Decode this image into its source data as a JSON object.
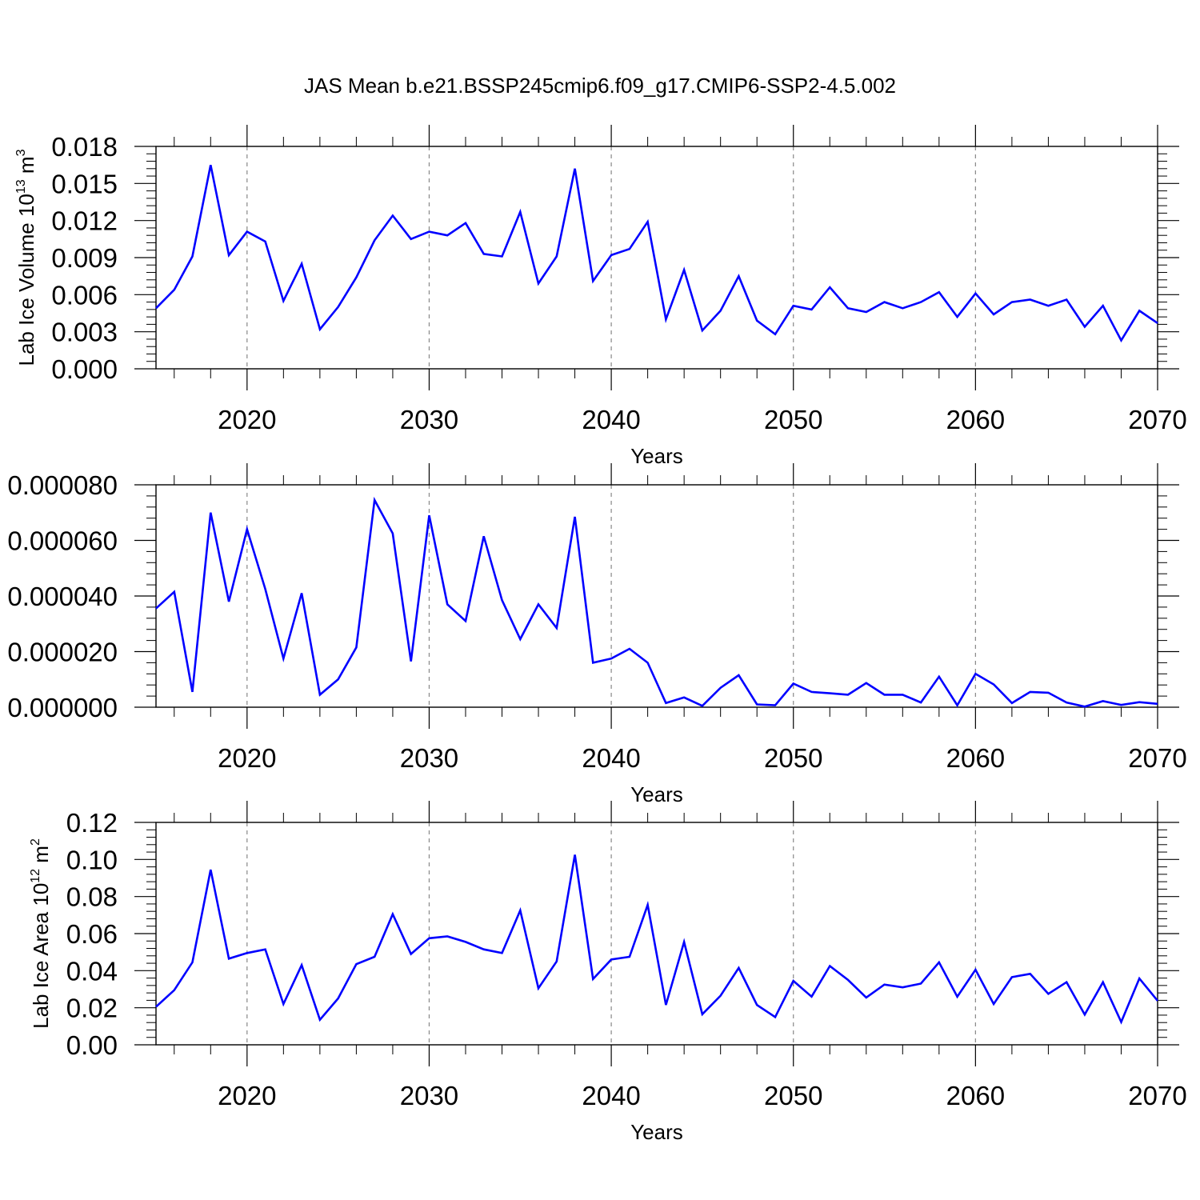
{
  "title": "JAS Mean b.e21.BSSP245cmip6.f09_g17.CMIP6-SSP2-4.5.002",
  "line_color": "#0000ff",
  "grid_color": "#888888",
  "chart_data": [
    {
      "type": "line",
      "xlabel": "Years",
      "ylabel": "Lab Ice Volume 10",
      "ylabel_sup": "13",
      "ylabel_unit": " m",
      "ylabel_unit_sup": "3",
      "xlim": [
        2015,
        2070
      ],
      "ylim": [
        0,
        0.018
      ],
      "x_ticks": [
        2020,
        2030,
        2040,
        2050,
        2060,
        2070
      ],
      "y_ticks": [
        0,
        0.003,
        0.006,
        0.009,
        0.012,
        0.015,
        0.018
      ],
      "y_tick_labels": [
        "0.000",
        "0.003",
        "0.006",
        "0.009",
        "0.012",
        "0.015",
        "0.018"
      ],
      "vertical_grid": "dashed at major x ticks",
      "x": [
        2015,
        2016,
        2017,
        2018,
        2019,
        2020,
        2021,
        2022,
        2023,
        2024,
        2025,
        2026,
        2027,
        2028,
        2029,
        2030,
        2031,
        2032,
        2033,
        2034,
        2035,
        2036,
        2037,
        2038,
        2039,
        2040,
        2041,
        2042,
        2043,
        2044,
        2045,
        2046,
        2047,
        2048,
        2049,
        2050,
        2051,
        2052,
        2053,
        2054,
        2055,
        2056,
        2057,
        2058,
        2059,
        2060,
        2061,
        2062,
        2063,
        2064,
        2065,
        2066,
        2067,
        2068,
        2069,
        2070
      ],
      "y": [
        0.0049,
        0.0064,
        0.0091,
        0.0165,
        0.0092,
        0.0111,
        0.0103,
        0.0055,
        0.0085,
        0.0032,
        0.005,
        0.0074,
        0.0104,
        0.0124,
        0.0105,
        0.0111,
        0.0108,
        0.0118,
        0.0093,
        0.0091,
        0.0127,
        0.0069,
        0.0091,
        0.0162,
        0.0071,
        0.0092,
        0.0097,
        0.0119,
        0.004,
        0.008,
        0.0031,
        0.0047,
        0.0075,
        0.0039,
        0.0028,
        0.0051,
        0.0048,
        0.0066,
        0.0049,
        0.0046,
        0.0054,
        0.0049,
        0.0054,
        0.0062,
        0.0042,
        0.0061,
        0.0044,
        0.0054,
        0.0056,
        0.0051,
        0.0056,
        0.0034,
        0.0051,
        0.0023,
        0.0047,
        0.0037
      ]
    },
    {
      "type": "line",
      "xlabel": "Years",
      "ylabel": "",
      "xlim": [
        2015,
        2070
      ],
      "ylim": [
        0,
        8e-05
      ],
      "x_ticks": [
        2020,
        2030,
        2040,
        2050,
        2060,
        2070
      ],
      "y_ticks": [
        0,
        2e-05,
        4e-05,
        6e-05,
        8e-05
      ],
      "y_tick_labels": [
        "0.000000",
        "0.000020",
        "0.000040",
        "0.000060",
        "0.000080"
      ],
      "vertical_grid": "dashed at major x ticks",
      "x": [
        2015,
        2016,
        2017,
        2018,
        2019,
        2020,
        2021,
        2022,
        2023,
        2024,
        2025,
        2026,
        2027,
        2028,
        2029,
        2030,
        2031,
        2032,
        2033,
        2034,
        2035,
        2036,
        2037,
        2038,
        2039,
        2040,
        2041,
        2042,
        2043,
        2044,
        2045,
        2046,
        2047,
        2048,
        2049,
        2050,
        2051,
        2052,
        2053,
        2054,
        2055,
        2056,
        2057,
        2058,
        2059,
        2060,
        2061,
        2062,
        2063,
        2064,
        2065,
        2066,
        2067,
        2068,
        2069,
        2070
      ],
      "y": [
        3.55e-05,
        4.15e-05,
        5.5e-06,
        7e-05,
        3.8e-05,
        6.4e-05,
        4.25e-05,
        1.75e-05,
        4.1e-05,
        4.5e-06,
        1e-05,
        2.15e-05,
        7.45e-05,
        6.25e-05,
        1.65e-05,
        6.9e-05,
        3.7e-05,
        3.1e-05,
        6.15e-05,
        3.85e-05,
        2.45e-05,
        3.7e-05,
        2.85e-05,
        6.85e-05,
        1.6e-05,
        1.75e-05,
        2.1e-05,
        1.6e-05,
        1.5e-06,
        3.5e-06,
        5e-07,
        7e-06,
        1.15e-05,
        1e-06,
        7e-07,
        8.5e-06,
        5.5e-06,
        5e-06,
        4.5e-06,
        8.7e-06,
        4.5e-06,
        4.5e-06,
        1.7e-06,
        1.1e-05,
        7e-07,
        1.2e-05,
        8.2e-06,
        1.5e-06,
        5.5e-06,
        5.2e-06,
        1.7e-06,
        2e-07,
        2.2e-06,
        8e-07,
        1.8e-06,
        1.2e-06
      ]
    },
    {
      "type": "line",
      "xlabel": "Years",
      "ylabel": "Lab Ice Area 10",
      "ylabel_sup": "12",
      "ylabel_unit": " m",
      "ylabel_unit_sup": "2",
      "xlim": [
        2015,
        2070
      ],
      "ylim": [
        0,
        0.12
      ],
      "x_ticks": [
        2020,
        2030,
        2040,
        2050,
        2060,
        2070
      ],
      "y_ticks": [
        0,
        0.02,
        0.04,
        0.06,
        0.08,
        0.1,
        0.12
      ],
      "y_tick_labels": [
        "0.00",
        "0.02",
        "0.04",
        "0.06",
        "0.08",
        "0.10",
        "0.12"
      ],
      "vertical_grid": "dashed at major x ticks",
      "x": [
        2015,
        2016,
        2017,
        2018,
        2019,
        2020,
        2021,
        2022,
        2023,
        2024,
        2025,
        2026,
        2027,
        2028,
        2029,
        2030,
        2031,
        2032,
        2033,
        2034,
        2035,
        2036,
        2037,
        2038,
        2039,
        2040,
        2041,
        2042,
        2043,
        2044,
        2045,
        2046,
        2047,
        2048,
        2049,
        2050,
        2051,
        2052,
        2053,
        2054,
        2055,
        2056,
        2057,
        2058,
        2059,
        2060,
        2061,
        2062,
        2063,
        2064,
        2065,
        2066,
        2067,
        2068,
        2069,
        2070
      ],
      "y": [
        0.0205,
        0.0295,
        0.0445,
        0.0945,
        0.0465,
        0.0495,
        0.0515,
        0.022,
        0.043,
        0.0135,
        0.025,
        0.0435,
        0.0475,
        0.0705,
        0.049,
        0.0575,
        0.0585,
        0.0555,
        0.0515,
        0.0495,
        0.0725,
        0.0305,
        0.045,
        0.1025,
        0.0355,
        0.046,
        0.0475,
        0.0755,
        0.0215,
        0.0555,
        0.0165,
        0.0265,
        0.0415,
        0.0215,
        0.015,
        0.0345,
        0.026,
        0.0425,
        0.035,
        0.0255,
        0.0325,
        0.031,
        0.033,
        0.0445,
        0.026,
        0.0405,
        0.022,
        0.0365,
        0.0383,
        0.0275,
        0.0338,
        0.0163,
        0.0338,
        0.0123,
        0.0358,
        0.0238
      ]
    }
  ]
}
